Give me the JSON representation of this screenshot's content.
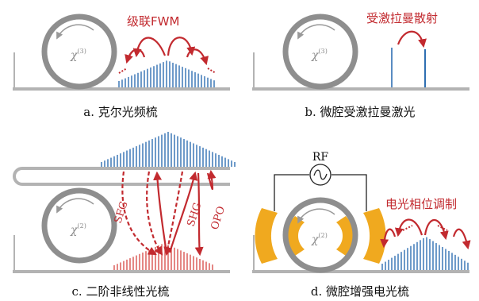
{
  "panels": {
    "a": {
      "caption": "a. 克尔光频梳",
      "annotation": "级联FWM",
      "chi_order": "(3)"
    },
    "b": {
      "caption": "b. 微腔受激拉曼激光",
      "annotation": "受激拉曼散射",
      "chi_order": "(3)"
    },
    "c": {
      "caption": "c. 二阶非线性光梳",
      "chi_order": "(2)",
      "process_labels": [
        "SFG",
        "SHG",
        "OPO"
      ]
    },
    "d": {
      "caption": "d. 微腔增强电光梳",
      "annotation": "电光相位调制",
      "chi_order": "(2)",
      "source_label": "RF"
    }
  },
  "colors": {
    "ring": "#8e8e8e",
    "waveguide": "#b3b3b3",
    "comb_blue": "#2f6fb2",
    "comb_red": "#d9534f",
    "arrow_red": "#c22a2f",
    "electrode": "#f0a91f"
  },
  "chi_symbol": "χ"
}
